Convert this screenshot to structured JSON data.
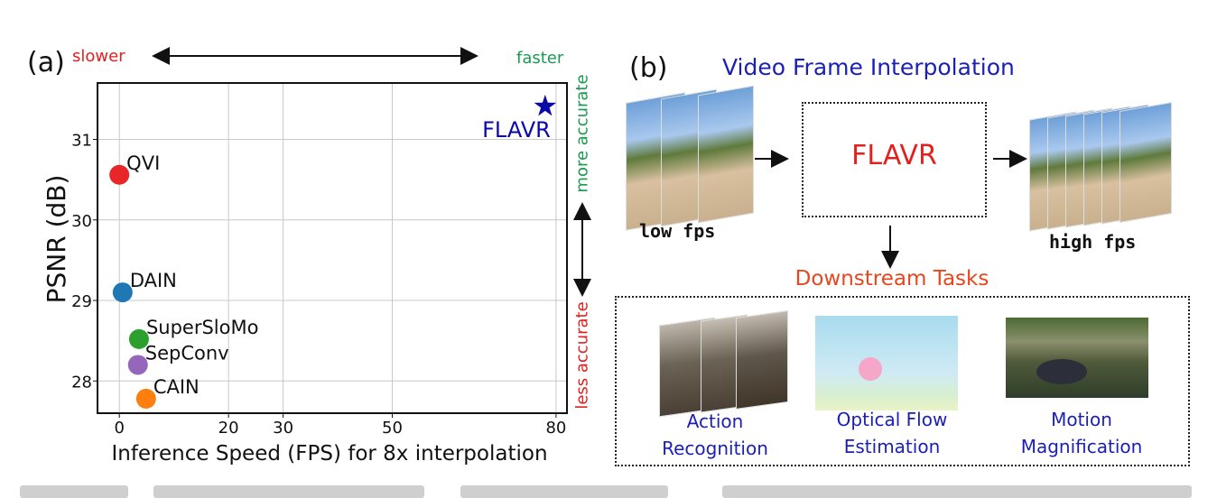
{
  "panel_a": {
    "label": "(a)",
    "slower": "slower",
    "faster": "faster",
    "more_accurate": "more accurate",
    "less_accurate": "less accurate",
    "colors": {
      "slower": "#e0211f",
      "faster": "#1a9a4e",
      "more_accurate": "#1a9a4e",
      "less_accurate": "#e0211f"
    }
  },
  "chart_data": {
    "type": "scatter",
    "xlabel": "Inference Speed (FPS) for 8x interpolation",
    "ylabel": "PSNR (dB)",
    "xlim": [
      -4,
      82
    ],
    "ylim": [
      27.6,
      31.7
    ],
    "xticks": [
      0,
      20,
      30,
      50,
      80
    ],
    "yticks": [
      28,
      29,
      30,
      31
    ],
    "grid": true,
    "points": [
      {
        "label": "QVI",
        "x": 0,
        "y": 30.56,
        "color": "#e8262a",
        "marker": "circle"
      },
      {
        "label": "DAIN",
        "x": 0.6,
        "y": 29.1,
        "color": "#1f77b4",
        "marker": "circle"
      },
      {
        "label": "SuperSloMo",
        "x": 3.6,
        "y": 28.52,
        "color": "#2ca02c",
        "marker": "circle"
      },
      {
        "label": "SepConv",
        "x": 3.4,
        "y": 28.2,
        "color": "#9467bd",
        "marker": "circle"
      },
      {
        "label": "CAIN",
        "x": 4.9,
        "y": 27.78,
        "color": "#ff7f0e",
        "marker": "circle"
      },
      {
        "label": "FLAVR",
        "x": 78,
        "y": 31.41,
        "color": "#0a0aa8",
        "marker": "star"
      }
    ]
  },
  "panel_b": {
    "label": "(b)",
    "title": "Video Frame Interpolation",
    "model": "FLAVR",
    "input_label": "low fps",
    "output_label": "high fps",
    "downstream_title": "Downstream Tasks",
    "tasks": [
      {
        "line1": "Action",
        "line2": "Recognition"
      },
      {
        "line1": "Optical Flow",
        "line2": "Estimation"
      },
      {
        "line1": "Motion",
        "line2": "Magnification"
      }
    ],
    "colors": {
      "title": "#1a1fb8",
      "model": "#e0211f",
      "downstream": "#e8461e"
    }
  }
}
